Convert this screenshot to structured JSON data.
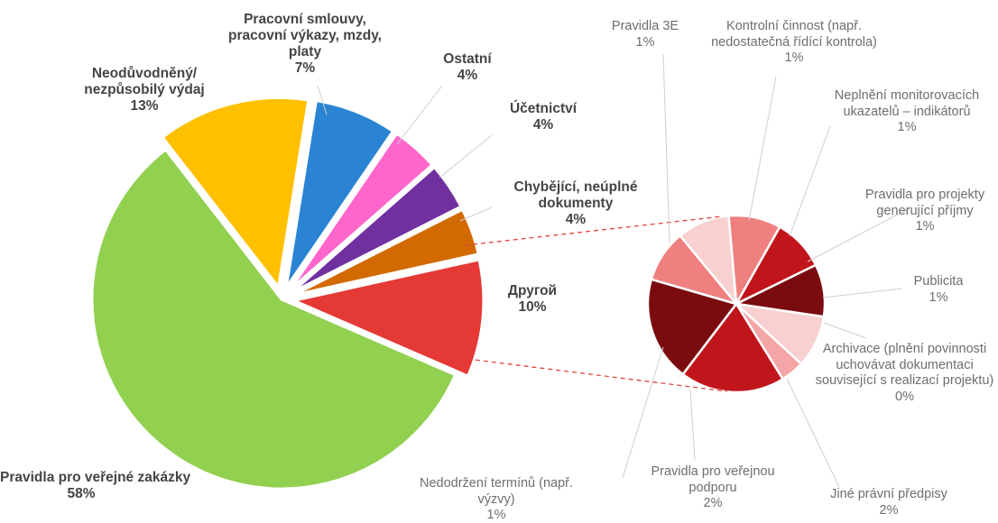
{
  "chart_data": [
    {
      "type": "pie",
      "title": "",
      "slices": [
        {
          "label": "Pravidla pro veřejné zakázky",
          "value": 58,
          "display": "58%",
          "color": "#92D050"
        },
        {
          "label": "Neodůvodněný/ nezpůsobilý výdaj",
          "value": 13,
          "display": "13%",
          "color": "#FFC000"
        },
        {
          "label": "Pracovní smlouvy, pracovní výkazy, mzdy, platy",
          "value": 7,
          "display": "7%",
          "color": "#2B84D3"
        },
        {
          "label": "Ostatní",
          "value": 4,
          "display": "4%",
          "color": "#FF66CC"
        },
        {
          "label": "Účetnictví",
          "value": 4,
          "display": "4%",
          "color": "#7030A0"
        },
        {
          "label": "Chybějící, neúplné dokumenty",
          "value": 4,
          "display": "4%",
          "color": "#D26A00"
        },
        {
          "label": "Другой",
          "value": 10,
          "display": "10%",
          "color": "#E53935"
        }
      ]
    },
    {
      "type": "pie",
      "title": "",
      "breakdown_of": "Другой",
      "slices": [
        {
          "label": "Kontrolní činnost (např. nedostatečná řídící kontrola)",
          "value": 1,
          "display": "1%",
          "color": "#F08080"
        },
        {
          "label": "Neplnění monitorovacích ukazatelů – indikátorů",
          "value": 1,
          "display": "1%",
          "color": "#C0161B"
        },
        {
          "label": "Pravidla pro projekty generující příjmy",
          "value": 1,
          "display": "1%",
          "color": "#7A0C0F"
        },
        {
          "label": "Publicita",
          "value": 1,
          "display": "1%",
          "color": "#F9D0D0"
        },
        {
          "label": "Archivace (plnění povinnosti uchovávat dokumentaci související s realizací projektu)",
          "value": 0,
          "display": "0%",
          "color": "#F4A6A6"
        },
        {
          "label": "Jiné právní předpisy",
          "value": 2,
          "display": "2%",
          "color": "#C0161B"
        },
        {
          "label": "Pravidla pro veřejnou podporu",
          "value": 2,
          "display": "2%",
          "color": "#7A0C0F"
        },
        {
          "label": "Nedodržení termínů (např. výzvy)",
          "value": 1,
          "display": "1%",
          "color": "#F08080"
        },
        {
          "label": "Pravidla 3E",
          "value": 1,
          "display": "1%",
          "color": "#F9D0D0"
        }
      ]
    }
  ]
}
